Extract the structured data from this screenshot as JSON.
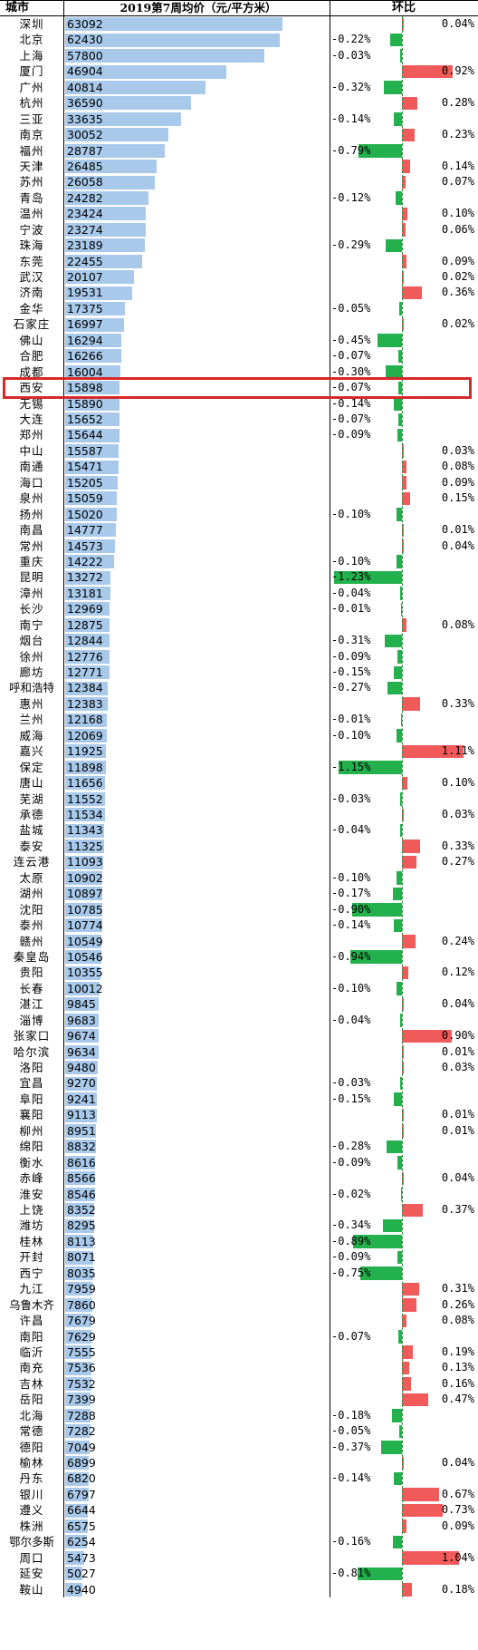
{
  "headers": {
    "city": "城市",
    "price": "2019第7周均价（元/平方米）",
    "change": "环比"
  },
  "colors": {
    "price_bar": "#a8c9ea",
    "increase": "#f05a5a",
    "decrease": "#22b14c",
    "highlight": "#d9282a"
  },
  "highlighted_city": "西安",
  "chart_data": {
    "type": "bar",
    "title": "",
    "series": [
      {
        "name": "2019第7周均价（元/平方米）"
      },
      {
        "name": "环比"
      }
    ],
    "rows": [
      {
        "city": "深圳",
        "price": 63092,
        "change": 0.04
      },
      {
        "city": "北京",
        "price": 62430,
        "change": -0.22
      },
      {
        "city": "上海",
        "price": 57800,
        "change": -0.03
      },
      {
        "city": "厦门",
        "price": 46904,
        "change": 0.92
      },
      {
        "city": "广州",
        "price": 40814,
        "change": -0.32
      },
      {
        "city": "杭州",
        "price": 36590,
        "change": 0.28
      },
      {
        "city": "三亚",
        "price": 33635,
        "change": -0.14
      },
      {
        "city": "南京",
        "price": 30052,
        "change": 0.23
      },
      {
        "city": "福州",
        "price": 28787,
        "change": -0.79
      },
      {
        "city": "天津",
        "price": 26485,
        "change": 0.14
      },
      {
        "city": "苏州",
        "price": 26058,
        "change": 0.07
      },
      {
        "city": "青岛",
        "price": 24282,
        "change": -0.12
      },
      {
        "city": "温州",
        "price": 23424,
        "change": 0.1
      },
      {
        "city": "宁波",
        "price": 23274,
        "change": 0.06
      },
      {
        "city": "珠海",
        "price": 23189,
        "change": -0.29
      },
      {
        "city": "东莞",
        "price": 22455,
        "change": 0.09
      },
      {
        "city": "武汉",
        "price": 20107,
        "change": 0.02
      },
      {
        "city": "济南",
        "price": 19531,
        "change": 0.36
      },
      {
        "city": "金华",
        "price": 17375,
        "change": -0.05
      },
      {
        "city": "石家庄",
        "price": 16997,
        "change": 0.02
      },
      {
        "city": "佛山",
        "price": 16294,
        "change": -0.45
      },
      {
        "city": "合肥",
        "price": 16266,
        "change": -0.07
      },
      {
        "city": "成都",
        "price": 16004,
        "change": -0.3
      },
      {
        "city": "西安",
        "price": 15898,
        "change": -0.07
      },
      {
        "city": "无锡",
        "price": 15890,
        "change": -0.14
      },
      {
        "city": "大连",
        "price": 15652,
        "change": -0.07
      },
      {
        "city": "郑州",
        "price": 15644,
        "change": -0.09
      },
      {
        "city": "中山",
        "price": 15587,
        "change": 0.03
      },
      {
        "city": "南通",
        "price": 15471,
        "change": 0.08
      },
      {
        "city": "海口",
        "price": 15205,
        "change": 0.09
      },
      {
        "city": "泉州",
        "price": 15059,
        "change": 0.15
      },
      {
        "city": "扬州",
        "price": 15020,
        "change": -0.1
      },
      {
        "city": "南昌",
        "price": 14777,
        "change": 0.01
      },
      {
        "city": "常州",
        "price": 14573,
        "change": 0.04
      },
      {
        "city": "重庆",
        "price": 14222,
        "change": -0.1
      },
      {
        "city": "昆明",
        "price": 13272,
        "change": -1.23
      },
      {
        "city": "漳州",
        "price": 13181,
        "change": -0.04
      },
      {
        "city": "长沙",
        "price": 12969,
        "change": -0.01
      },
      {
        "city": "南宁",
        "price": 12875,
        "change": 0.08
      },
      {
        "city": "烟台",
        "price": 12844,
        "change": -0.31
      },
      {
        "city": "徐州",
        "price": 12776,
        "change": -0.09
      },
      {
        "city": "廊坊",
        "price": 12771,
        "change": -0.15
      },
      {
        "city": "呼和浩特",
        "price": 12384,
        "change": -0.27
      },
      {
        "city": "惠州",
        "price": 12383,
        "change": 0.33
      },
      {
        "city": "兰州",
        "price": 12168,
        "change": -0.01
      },
      {
        "city": "威海",
        "price": 12069,
        "change": -0.1
      },
      {
        "city": "嘉兴",
        "price": 11925,
        "change": 1.11
      },
      {
        "city": "保定",
        "price": 11898,
        "change": -1.15
      },
      {
        "city": "唐山",
        "price": 11656,
        "change": 0.1
      },
      {
        "city": "芜湖",
        "price": 11552,
        "change": -0.03
      },
      {
        "city": "承德",
        "price": 11534,
        "change": 0.03
      },
      {
        "city": "盐城",
        "price": 11343,
        "change": -0.04
      },
      {
        "city": "泰安",
        "price": 11325,
        "change": 0.33
      },
      {
        "city": "连云港",
        "price": 11093,
        "change": 0.27
      },
      {
        "city": "太原",
        "price": 10902,
        "change": -0.1
      },
      {
        "city": "湖州",
        "price": 10897,
        "change": -0.17
      },
      {
        "city": "沈阳",
        "price": 10785,
        "change": -0.9
      },
      {
        "city": "泰州",
        "price": 10774,
        "change": -0.14
      },
      {
        "city": "赣州",
        "price": 10549,
        "change": 0.24
      },
      {
        "city": "秦皇岛",
        "price": 10546,
        "change": -0.94
      },
      {
        "city": "贵阳",
        "price": 10355,
        "change": 0.12
      },
      {
        "city": "长春",
        "price": 10012,
        "change": -0.1
      },
      {
        "city": "湛江",
        "price": 9845,
        "change": 0.04
      },
      {
        "city": "淄博",
        "price": 9683,
        "change": -0.04
      },
      {
        "city": "张家口",
        "price": 9674,
        "change": 0.9
      },
      {
        "city": "哈尔滨",
        "price": 9634,
        "change": 0.01
      },
      {
        "city": "洛阳",
        "price": 9480,
        "change": 0.03
      },
      {
        "city": "宜昌",
        "price": 9270,
        "change": -0.03
      },
      {
        "city": "阜阳",
        "price": 9241,
        "change": -0.15
      },
      {
        "city": "襄阳",
        "price": 9113,
        "change": 0.01
      },
      {
        "city": "柳州",
        "price": 8951,
        "change": 0.01
      },
      {
        "city": "绵阳",
        "price": 8832,
        "change": -0.28
      },
      {
        "city": "衡水",
        "price": 8616,
        "change": -0.09
      },
      {
        "city": "赤峰",
        "price": 8566,
        "change": 0.04
      },
      {
        "city": "淮安",
        "price": 8546,
        "change": -0.02
      },
      {
        "city": "上饶",
        "price": 8352,
        "change": 0.37
      },
      {
        "city": "潍坊",
        "price": 8295,
        "change": -0.34
      },
      {
        "city": "桂林",
        "price": 8113,
        "change": -0.89
      },
      {
        "city": "开封",
        "price": 8071,
        "change": -0.09
      },
      {
        "city": "西宁",
        "price": 8035,
        "change": -0.75
      },
      {
        "city": "九江",
        "price": 7959,
        "change": 0.31
      },
      {
        "city": "乌鲁木齐",
        "price": 7860,
        "change": 0.26
      },
      {
        "city": "许昌",
        "price": 7679,
        "change": 0.08
      },
      {
        "city": "南阳",
        "price": 7629,
        "change": -0.07
      },
      {
        "city": "临沂",
        "price": 7555,
        "change": 0.19
      },
      {
        "city": "南充",
        "price": 7536,
        "change": 0.13
      },
      {
        "city": "吉林",
        "price": 7532,
        "change": 0.16
      },
      {
        "city": "岳阳",
        "price": 7399,
        "change": 0.47
      },
      {
        "city": "北海",
        "price": 7288,
        "change": -0.18
      },
      {
        "city": "常德",
        "price": 7282,
        "change": -0.05
      },
      {
        "city": "德阳",
        "price": 7049,
        "change": -0.37
      },
      {
        "city": "榆林",
        "price": 6899,
        "change": 0.04
      },
      {
        "city": "丹东",
        "price": 6820,
        "change": -0.14
      },
      {
        "city": "银川",
        "price": 6797,
        "change": 0.67
      },
      {
        "city": "遵义",
        "price": 6644,
        "change": 0.73
      },
      {
        "city": "株洲",
        "price": 6575,
        "change": 0.09
      },
      {
        "city": "鄂尔多斯",
        "price": 6254,
        "change": -0.16
      },
      {
        "city": "周口",
        "price": 5473,
        "change": 1.04
      },
      {
        "city": "延安",
        "price": 5027,
        "change": -0.81
      },
      {
        "city": "鞍山",
        "price": 4940,
        "change": 0.18
      }
    ]
  }
}
